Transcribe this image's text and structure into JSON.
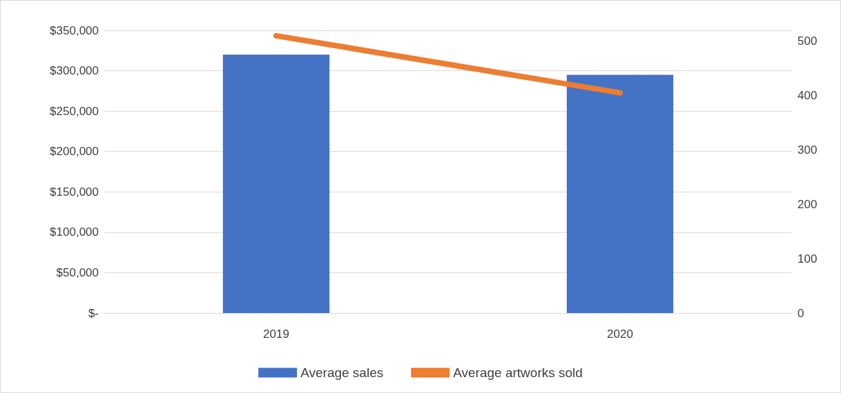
{
  "chart_data": {
    "type": "bar",
    "categories": [
      "2019",
      "2020"
    ],
    "series": [
      {
        "name": "Average sales",
        "color": "#4472c4",
        "values": [
          320000,
          295000
        ]
      },
      {
        "name": "Average artworks sold",
        "type": "line",
        "axis": "y2",
        "color": "#ed7d31",
        "values": [
          510,
          405
        ]
      }
    ],
    "ylim": [
      0,
      350000
    ],
    "yticks": [
      {
        "value": 0,
        "label": "$-"
      },
      {
        "value": 50000,
        "label": "$50,000"
      },
      {
        "value": 100000,
        "label": "$100,000"
      },
      {
        "value": 150000,
        "label": "$150,000"
      },
      {
        "value": 200000,
        "label": "$200,000"
      },
      {
        "value": 250000,
        "label": "$250,000"
      },
      {
        "value": 300000,
        "label": "$300,000"
      },
      {
        "value": 350000,
        "label": "$350,000"
      }
    ],
    "y2lim": [
      0,
      520
    ],
    "y2ticks": [
      0,
      100,
      200,
      300,
      400,
      500
    ],
    "grid": "y",
    "legend": "bottom",
    "marker": "none",
    "line_style": "solid"
  }
}
